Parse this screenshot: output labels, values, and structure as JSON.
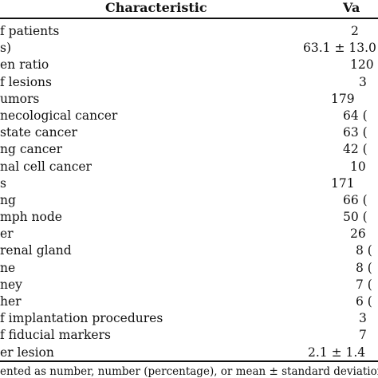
{
  "table": {
    "header": {
      "characteristic": "Characteristic",
      "value": "Va"
    },
    "rows": [
      {
        "label": "f patients",
        "value": "2"
      },
      {
        "label": "s)",
        "value": "63.1 ± 13.0"
      },
      {
        "label": "en ratio",
        "value": "120"
      },
      {
        "label": "f lesions",
        "value": "3"
      },
      {
        "label": "umors",
        "value": "179"
      },
      {
        "label": "necological cancer",
        "value": "64 ("
      },
      {
        "label": "state cancer",
        "value": "63 ("
      },
      {
        "label": "ng cancer",
        "value": "42 ("
      },
      {
        "label": "nal cell cancer",
        "value": "10"
      },
      {
        "label": "s",
        "value": "171"
      },
      {
        "label": "ng",
        "value": "66 ("
      },
      {
        "label": "mph node",
        "value": "50 ("
      },
      {
        "label": "er",
        "value": "26"
      },
      {
        "label": "renal gland",
        "value": "8 ("
      },
      {
        "label": "ne",
        "value": "8 ("
      },
      {
        "label": "ney",
        "value": "7 ("
      },
      {
        "label": "her",
        "value": "6 ("
      },
      {
        "label": "f implantation procedures",
        "value": "3"
      },
      {
        "label": "f fiducial markers",
        "value": "7"
      },
      {
        "label": "er lesion",
        "value": "2.1 ± 1.4"
      }
    ],
    "footnote": "ented as number, number (percentage), or mean ± standard deviation"
  }
}
